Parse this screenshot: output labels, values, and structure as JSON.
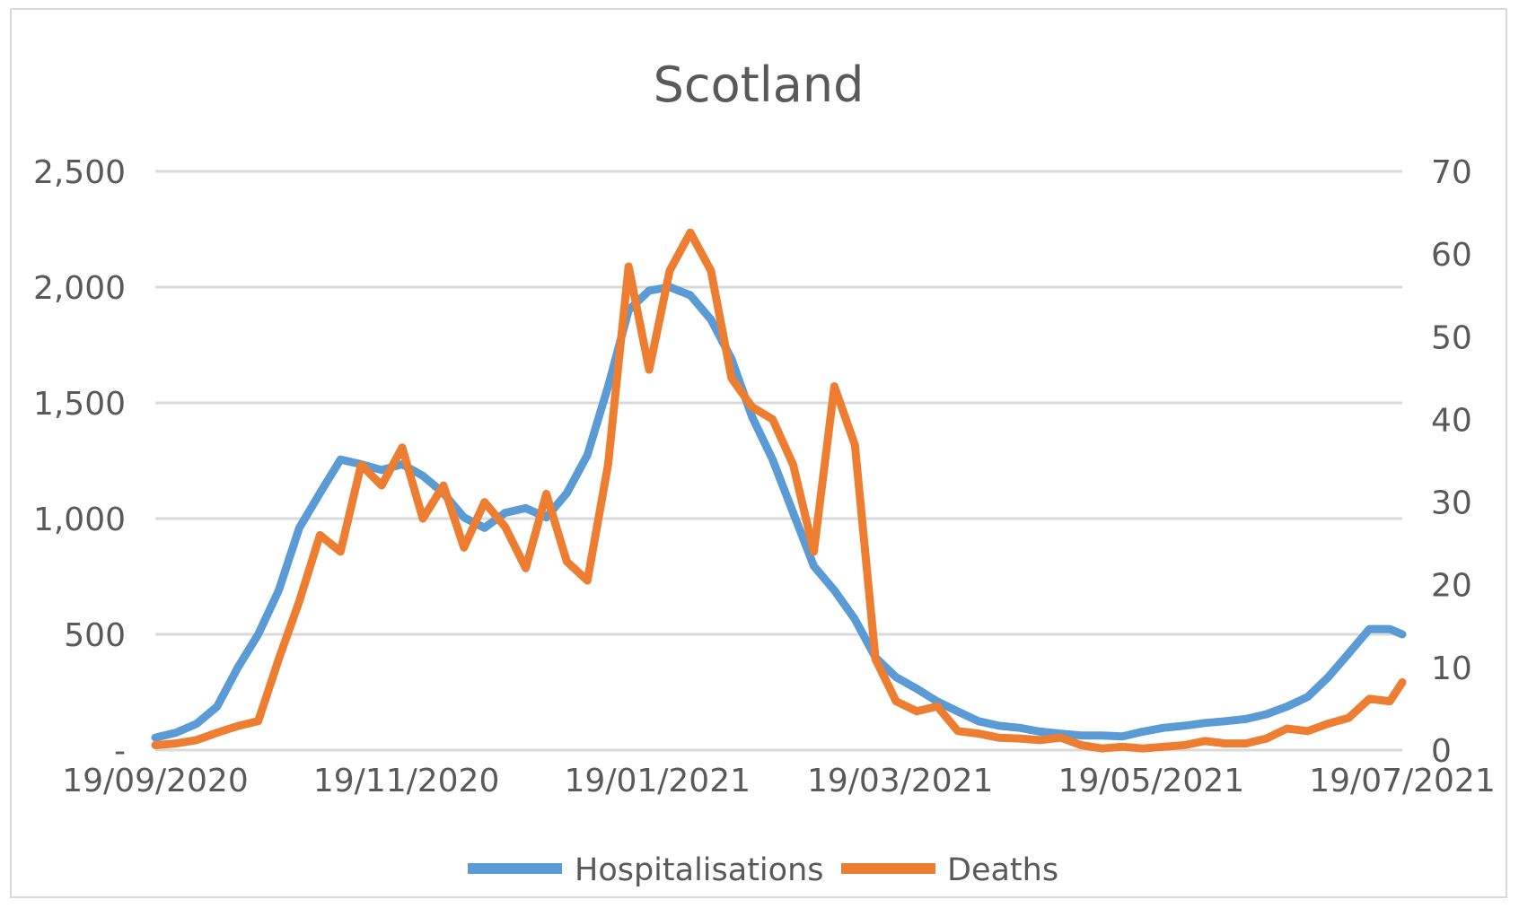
{
  "chart_data": {
    "type": "line",
    "title": "Scotland",
    "xlabel": "",
    "ylabel": "",
    "x_unit": "days since 19/09/2020",
    "x": [
      0,
      5,
      10,
      15,
      20,
      25,
      30,
      35,
      40,
      45,
      50,
      55,
      60,
      65,
      70,
      75,
      80,
      85,
      90,
      95,
      100,
      105,
      110,
      115,
      120,
      125,
      130,
      135,
      140,
      145,
      150,
      155,
      160,
      165,
      170,
      175,
      180,
      185,
      190,
      195,
      200,
      205,
      210,
      215,
      220,
      225,
      230,
      235,
      240,
      245,
      250,
      255,
      260,
      265,
      270,
      275,
      280,
      285,
      290,
      295,
      300,
      303
    ],
    "xlim": [
      0,
      303
    ],
    "x_ticks": [
      {
        "day": 0,
        "label": "19/09/2020"
      },
      {
        "day": 61,
        "label": "19/11/2020"
      },
      {
        "day": 122,
        "label": "19/01/2021"
      },
      {
        "day": 181,
        "label": "19/03/2021"
      },
      {
        "day": 242,
        "label": "19/05/2021"
      },
      {
        "day": 303,
        "label": "19/07/2021"
      }
    ],
    "y_left": {
      "lim": [
        0,
        2500
      ],
      "ticks": [
        0,
        500,
        1000,
        1500,
        2000,
        2500
      ],
      "tick_labels": [
        "-",
        "500",
        "1,000",
        "1,500",
        "2,000",
        "2,500"
      ]
    },
    "y_right": {
      "lim": [
        0,
        70
      ],
      "ticks": [
        0,
        10,
        20,
        30,
        40,
        50,
        60,
        70
      ],
      "tick_labels": [
        "0",
        "10",
        "20",
        "30",
        "40",
        "50",
        "60",
        "70"
      ]
    },
    "grid": true,
    "legend_position": "bottom",
    "series": [
      {
        "name": "Hospitalisations",
        "axis": "left",
        "color": "#5b9bd5",
        "values": [
          54,
          75,
          113,
          188,
          355,
          500,
          690,
          960,
          1110,
          1255,
          1235,
          1210,
          1235,
          1185,
          1110,
          1005,
          960,
          1025,
          1045,
          1005,
          1110,
          1275,
          1570,
          1900,
          1985,
          2000,
          1965,
          1860,
          1690,
          1440,
          1255,
          1025,
          795,
          690,
          565,
          400,
          315,
          265,
          210,
          167,
          125,
          105,
          96,
          80,
          71,
          63,
          63,
          59,
          80,
          96,
          105,
          117,
          125,
          134,
          155,
          188,
          230,
          315,
          418,
          523,
          523,
          500
        ]
      },
      {
        "name": "Deaths",
        "axis": "right",
        "color": "#ed7d31",
        "values": [
          0.6,
          0.8,
          1.2,
          2.1,
          2.9,
          3.5,
          11,
          18,
          26,
          24,
          34.5,
          32,
          36.6,
          28,
          32,
          24.5,
          30,
          27,
          22,
          31,
          22.8,
          20.5,
          34.5,
          58.5,
          46,
          58,
          62.6,
          58,
          45,
          41.5,
          40,
          34.5,
          24,
          44,
          36.9,
          11,
          5.9,
          4.7,
          5.3,
          2.3,
          2,
          1.5,
          1.4,
          1.2,
          1.5,
          0.6,
          0.2,
          0.4,
          0.2,
          0.4,
          0.6,
          1.1,
          0.8,
          0.8,
          1.4,
          2.6,
          2.3,
          3.2,
          3.9,
          6.2,
          5.9,
          8.2
        ]
      }
    ]
  }
}
